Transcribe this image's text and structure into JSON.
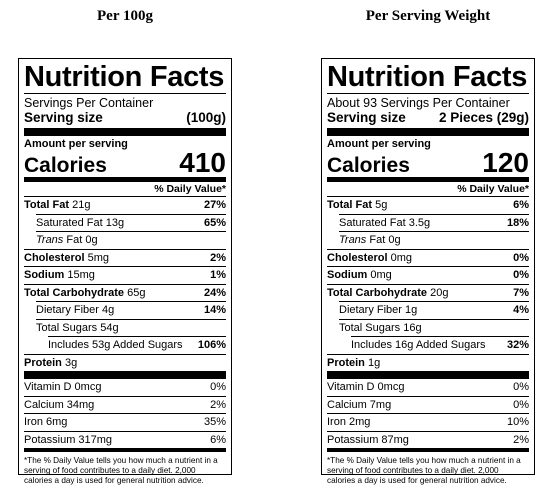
{
  "panels": [
    {
      "heading": "Per 100g",
      "title": "Nutrition Facts",
      "servings": "Servings Per Container",
      "serving_size_label": "Serving size",
      "serving_size_value": "(100g)",
      "amount_label": "Amount per serving",
      "calories_label": "Calories",
      "calories_value": "410",
      "dv_header": "% Daily Value*",
      "total_fat": {
        "label": "Total Fat",
        "amount": "21g",
        "dv": "27%"
      },
      "saturated_fat": {
        "label": "Saturated Fat",
        "amount": "13g",
        "dv": "65%"
      },
      "trans_fat": {
        "label_i": "Trans",
        "label": "Fat",
        "amount": "0g"
      },
      "cholesterol": {
        "label": "Cholesterol",
        "amount": "5mg",
        "dv": "2%"
      },
      "sodium": {
        "label": "Sodium",
        "amount": "15mg",
        "dv": "1%"
      },
      "total_carb": {
        "label": "Total Carbohydrate",
        "amount": "65g",
        "dv": "24%"
      },
      "fiber": {
        "label": "Dietary Fiber",
        "amount": "4g",
        "dv": "14%"
      },
      "total_sugars": {
        "label": "Total Sugars",
        "amount": "54g"
      },
      "added_sugars": {
        "label": "Includes 53g Added Sugars",
        "dv": "106%"
      },
      "protein": {
        "label": "Protein",
        "amount": "3g"
      },
      "vitamin_d": {
        "label": "Vitamin D 0mcg",
        "dv": "0%"
      },
      "calcium": {
        "label": "Calcium 34mg",
        "dv": "2%"
      },
      "iron": {
        "label": "Iron 6mg",
        "dv": "35%"
      },
      "potassium": {
        "label": "Potassium 317mg",
        "dv": "6%"
      },
      "footnote": "*The % Daily Value tells you how much a nutrient in a serving of food contributes to a daily diet. 2,000 calories a day is used for general nutrition advice."
    },
    {
      "heading": "Per Serving Weight",
      "title": "Nutrition Facts",
      "servings": "About 93 Servings Per Container",
      "serving_size_label": "Serving size",
      "serving_size_value": "2 Pieces (29g)",
      "amount_label": "Amount per serving",
      "calories_label": "Calories",
      "calories_value": "120",
      "dv_header": "% Daily Value*",
      "total_fat": {
        "label": "Total Fat",
        "amount": "5g",
        "dv": "6%"
      },
      "saturated_fat": {
        "label": "Saturated Fat",
        "amount": "3.5g",
        "dv": "18%"
      },
      "trans_fat": {
        "label_i": "Trans",
        "label": "Fat",
        "amount": "0g"
      },
      "cholesterol": {
        "label": "Cholesterol",
        "amount": "0mg",
        "dv": "0%"
      },
      "sodium": {
        "label": "Sodium",
        "amount": "0mg",
        "dv": "0%"
      },
      "total_carb": {
        "label": "Total Carbohydrate",
        "amount": "20g",
        "dv": "7%"
      },
      "fiber": {
        "label": "Dietary Fiber",
        "amount": "1g",
        "dv": "4%"
      },
      "total_sugars": {
        "label": "Total Sugars",
        "amount": "16g"
      },
      "added_sugars": {
        "label": "Includes 16g Added Sugars",
        "dv": "32%"
      },
      "protein": {
        "label": "Protein",
        "amount": "1g"
      },
      "vitamin_d": {
        "label": "Vitamin D 0mcg",
        "dv": "0%"
      },
      "calcium": {
        "label": "Calcium 7mg",
        "dv": "0%"
      },
      "iron": {
        "label": "Iron 2mg",
        "dv": "10%"
      },
      "potassium": {
        "label": "Potassium 87mg",
        "dv": "2%"
      },
      "footnote": "*The % Daily Value tells you how much a nutrient in a serving of food contributes to a daily diet. 2,000 calories a day is used for general nutrition advice."
    }
  ]
}
